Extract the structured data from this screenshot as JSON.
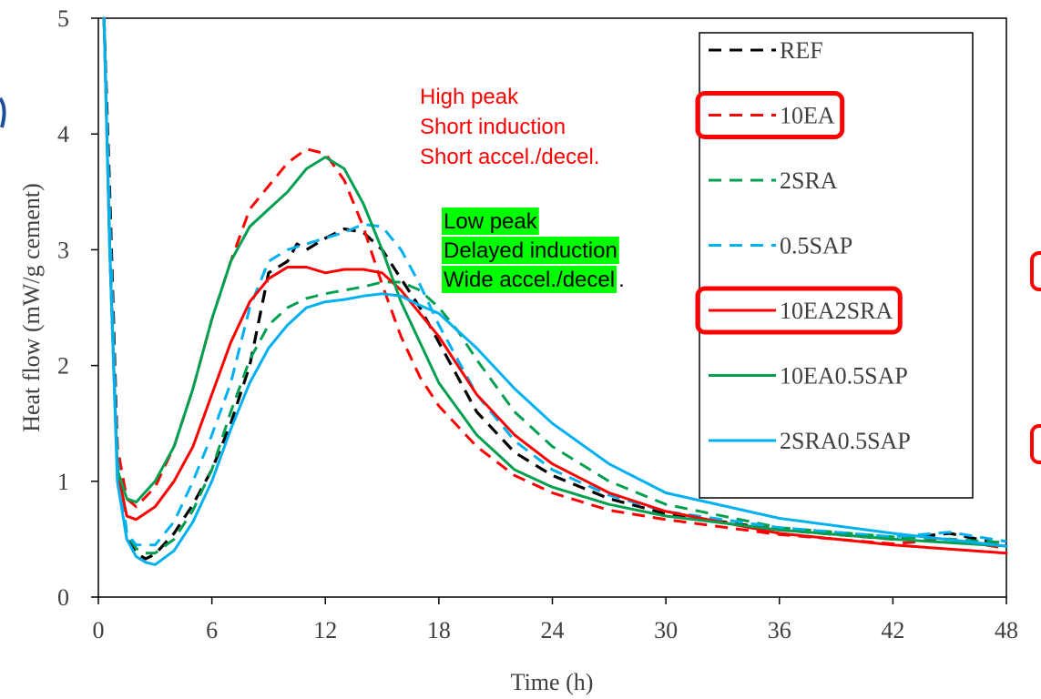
{
  "chart_data": {
    "type": "line",
    "title": "",
    "xlabel": "Time (h)",
    "ylabel": "Heat flow (mW/g cement)",
    "xlim": [
      0,
      48
    ],
    "ylim": [
      0,
      5
    ],
    "xticks": [
      0,
      6,
      12,
      18,
      24,
      30,
      36,
      42,
      48
    ],
    "yticks": [
      0,
      1,
      2,
      3,
      4,
      5
    ],
    "grid": false,
    "legend_position": "top-right",
    "series": [
      {
        "name": "REF",
        "color": "#000000",
        "dashed": true,
        "points": [
          [
            0.3,
            5.0
          ],
          [
            0.6,
            3.5
          ],
          [
            1.0,
            1.3
          ],
          [
            1.5,
            0.5
          ],
          [
            2.0,
            0.38
          ],
          [
            2.5,
            0.33
          ],
          [
            3.0,
            0.37
          ],
          [
            4,
            0.55
          ],
          [
            5,
            0.8
          ],
          [
            6,
            1.1
          ],
          [
            7,
            1.5
          ],
          [
            8,
            2.0
          ],
          [
            8.5,
            2.4
          ],
          [
            9,
            2.8
          ],
          [
            10,
            2.9
          ],
          [
            10.5,
            3.05
          ],
          [
            11,
            3.0
          ],
          [
            12,
            3.1
          ],
          [
            13,
            3.18
          ],
          [
            14,
            3.15
          ],
          [
            15,
            3.0
          ],
          [
            16,
            2.75
          ],
          [
            17,
            2.5
          ],
          [
            18,
            2.2
          ],
          [
            20,
            1.6
          ],
          [
            22,
            1.25
          ],
          [
            24,
            1.05
          ],
          [
            27,
            0.85
          ],
          [
            30,
            0.72
          ],
          [
            36,
            0.58
          ],
          [
            42,
            0.5
          ],
          [
            45,
            0.55
          ],
          [
            48,
            0.45
          ]
        ]
      },
      {
        "name": "10EA",
        "color": "#ff0000",
        "dashed": true,
        "points": [
          [
            0.3,
            5.0
          ],
          [
            0.6,
            3.3
          ],
          [
            1.0,
            1.3
          ],
          [
            1.5,
            0.85
          ],
          [
            2.0,
            0.78
          ],
          [
            3,
            0.95
          ],
          [
            4,
            1.3
          ],
          [
            5,
            1.8
          ],
          [
            6,
            2.4
          ],
          [
            7,
            2.9
          ],
          [
            8,
            3.35
          ],
          [
            9,
            3.55
          ],
          [
            10,
            3.75
          ],
          [
            11,
            3.87
          ],
          [
            12,
            3.83
          ],
          [
            13,
            3.6
          ],
          [
            14,
            3.2
          ],
          [
            15,
            2.7
          ],
          [
            16,
            2.25
          ],
          [
            17,
            1.9
          ],
          [
            18,
            1.65
          ],
          [
            20,
            1.3
          ],
          [
            22,
            1.05
          ],
          [
            24,
            0.9
          ],
          [
            27,
            0.75
          ],
          [
            30,
            0.67
          ],
          [
            36,
            0.54
          ],
          [
            42,
            0.46
          ],
          [
            45,
            0.5
          ],
          [
            48,
            0.42
          ]
        ]
      },
      {
        "name": "2SRA",
        "color": "#00a050",
        "dashed": true,
        "points": [
          [
            0.3,
            5.0
          ],
          [
            0.6,
            3.2
          ],
          [
            1.0,
            1.2
          ],
          [
            1.5,
            0.55
          ],
          [
            2.0,
            0.42
          ],
          [
            2.5,
            0.38
          ],
          [
            3,
            0.38
          ],
          [
            4,
            0.5
          ],
          [
            5,
            0.75
          ],
          [
            6,
            1.1
          ],
          [
            7,
            1.6
          ],
          [
            8,
            2.05
          ],
          [
            9,
            2.35
          ],
          [
            10,
            2.5
          ],
          [
            11,
            2.58
          ],
          [
            12,
            2.62
          ],
          [
            13,
            2.65
          ],
          [
            14,
            2.68
          ],
          [
            15,
            2.72
          ],
          [
            16,
            2.72
          ],
          [
            17,
            2.65
          ],
          [
            18,
            2.5
          ],
          [
            19,
            2.3
          ],
          [
            20,
            2.05
          ],
          [
            22,
            1.6
          ],
          [
            24,
            1.3
          ],
          [
            27,
            1.0
          ],
          [
            30,
            0.8
          ],
          [
            36,
            0.6
          ],
          [
            42,
            0.52
          ],
          [
            45,
            0.5
          ],
          [
            48,
            0.47
          ]
        ]
      },
      {
        "name": "0.5SAP",
        "color": "#00b0f0",
        "dashed": true,
        "points": [
          [
            0.3,
            5.0
          ],
          [
            0.6,
            3.3
          ],
          [
            1.0,
            1.2
          ],
          [
            1.5,
            0.55
          ],
          [
            2.0,
            0.45
          ],
          [
            3,
            0.45
          ],
          [
            4,
            0.65
          ],
          [
            5,
            1.0
          ],
          [
            6,
            1.4
          ],
          [
            7,
            1.85
          ],
          [
            8,
            2.5
          ],
          [
            9,
            2.9
          ],
          [
            10,
            3.0
          ],
          [
            11,
            3.05
          ],
          [
            12,
            3.1
          ],
          [
            13,
            3.15
          ],
          [
            14,
            3.22
          ],
          [
            15,
            3.2
          ],
          [
            16,
            3.0
          ],
          [
            17,
            2.7
          ],
          [
            18,
            2.35
          ],
          [
            20,
            1.75
          ],
          [
            22,
            1.35
          ],
          [
            24,
            1.1
          ],
          [
            27,
            0.88
          ],
          [
            30,
            0.74
          ],
          [
            36,
            0.6
          ],
          [
            42,
            0.52
          ],
          [
            45,
            0.56
          ],
          [
            48,
            0.48
          ]
        ]
      },
      {
        "name": "10EA2SRA",
        "color": "#ff0000",
        "dashed": false,
        "points": [
          [
            0.3,
            5.0
          ],
          [
            0.6,
            3.0
          ],
          [
            1.0,
            1.1
          ],
          [
            1.5,
            0.7
          ],
          [
            2.0,
            0.67
          ],
          [
            3,
            0.78
          ],
          [
            4,
            1.0
          ],
          [
            5,
            1.3
          ],
          [
            6,
            1.75
          ],
          [
            7,
            2.2
          ],
          [
            8,
            2.55
          ],
          [
            9,
            2.75
          ],
          [
            10,
            2.85
          ],
          [
            11,
            2.85
          ],
          [
            12,
            2.8
          ],
          [
            13,
            2.83
          ],
          [
            14,
            2.83
          ],
          [
            15,
            2.8
          ],
          [
            16,
            2.65
          ],
          [
            17,
            2.45
          ],
          [
            18,
            2.25
          ],
          [
            20,
            1.75
          ],
          [
            22,
            1.4
          ],
          [
            24,
            1.15
          ],
          [
            27,
            0.9
          ],
          [
            30,
            0.74
          ],
          [
            36,
            0.55
          ],
          [
            42,
            0.45
          ],
          [
            48,
            0.38
          ]
        ]
      },
      {
        "name": "10EA0.5SAP",
        "color": "#00a050",
        "dashed": false,
        "points": [
          [
            0.3,
            5.0
          ],
          [
            0.6,
            3.0
          ],
          [
            1.0,
            1.1
          ],
          [
            1.5,
            0.85
          ],
          [
            2.0,
            0.82
          ],
          [
            3,
            1.0
          ],
          [
            4,
            1.3
          ],
          [
            5,
            1.8
          ],
          [
            6,
            2.4
          ],
          [
            7,
            2.9
          ],
          [
            8,
            3.2
          ],
          [
            9,
            3.35
          ],
          [
            10,
            3.5
          ],
          [
            11,
            3.7
          ],
          [
            12,
            3.8
          ],
          [
            13,
            3.7
          ],
          [
            14,
            3.4
          ],
          [
            15,
            3.0
          ],
          [
            16,
            2.55
          ],
          [
            17,
            2.2
          ],
          [
            18,
            1.85
          ],
          [
            20,
            1.4
          ],
          [
            22,
            1.1
          ],
          [
            24,
            0.95
          ],
          [
            27,
            0.8
          ],
          [
            30,
            0.7
          ],
          [
            36,
            0.58
          ],
          [
            42,
            0.5
          ],
          [
            48,
            0.44
          ]
        ]
      },
      {
        "name": "2SRA0.5SAP",
        "color": "#00b0f0",
        "dashed": false,
        "points": [
          [
            0.3,
            5.0
          ],
          [
            0.6,
            3.0
          ],
          [
            1.0,
            1.0
          ],
          [
            1.5,
            0.5
          ],
          [
            2.0,
            0.35
          ],
          [
            2.5,
            0.3
          ],
          [
            3,
            0.28
          ],
          [
            4,
            0.4
          ],
          [
            5,
            0.65
          ],
          [
            6,
            1.0
          ],
          [
            7,
            1.45
          ],
          [
            8,
            1.85
          ],
          [
            9,
            2.15
          ],
          [
            10,
            2.35
          ],
          [
            11,
            2.5
          ],
          [
            12,
            2.55
          ],
          [
            13,
            2.57
          ],
          [
            14,
            2.6
          ],
          [
            15,
            2.62
          ],
          [
            16,
            2.6
          ],
          [
            17,
            2.52
          ],
          [
            18,
            2.45
          ],
          [
            20,
            2.15
          ],
          [
            22,
            1.8
          ],
          [
            24,
            1.5
          ],
          [
            27,
            1.15
          ],
          [
            30,
            0.9
          ],
          [
            36,
            0.68
          ],
          [
            42,
            0.55
          ],
          [
            48,
            0.44
          ]
        ]
      }
    ],
    "annotations": [
      {
        "lines": [
          "High peak",
          "Short induction",
          "Short accel./decel."
        ],
        "color": "#ff0000",
        "background": "none"
      },
      {
        "lines": [
          "Low peak",
          "Delayed induction",
          "Wide accel./decel"
        ],
        "trailing": ".",
        "color": "#000000",
        "background": "#00ff00"
      }
    ],
    "highlighted_legend_entries": [
      "10EA",
      "10EA2SRA"
    ],
    "highlight_color": "#ff0000"
  }
}
